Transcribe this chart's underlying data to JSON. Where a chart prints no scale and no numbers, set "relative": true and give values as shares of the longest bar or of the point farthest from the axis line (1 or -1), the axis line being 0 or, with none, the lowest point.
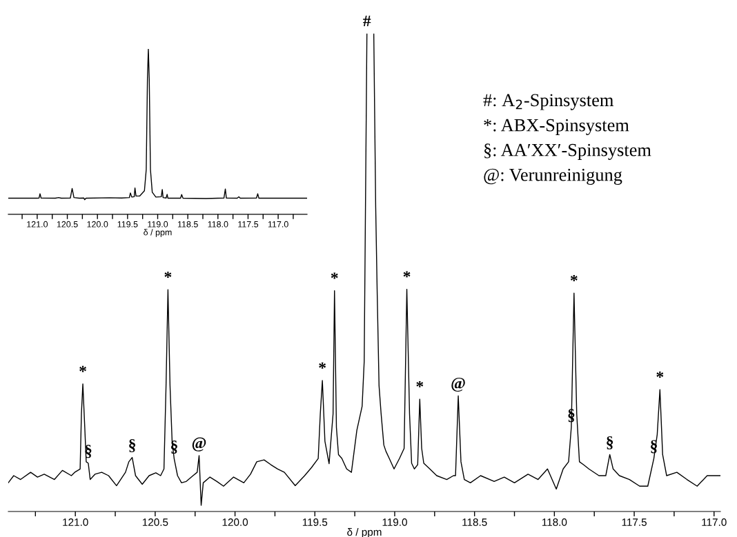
{
  "chart_data": [
    {
      "type": "line",
      "relative": true,
      "xlabel": "δ / ppm",
      "xlim": [
        121.42,
        116.96
      ],
      "xticks": [
        {
          "value": 121.25,
          "label": null
        },
        {
          "value": 121,
          "label": "121.0"
        },
        {
          "value": 120.75,
          "label": null
        },
        120.5,
        {
          "value": 120.25,
          "label": null
        },
        {
          "value": 120,
          "label": "120.0"
        },
        {
          "value": 119.75,
          "label": null
        },
        119.5,
        {
          "value": 119.25,
          "label": null
        },
        {
          "value": 119,
          "label": "119.0"
        },
        {
          "value": 118.75,
          "label": null
        },
        118.5,
        {
          "value": 118.25,
          "label": null
        },
        {
          "value": 118,
          "label": "118.0"
        },
        {
          "value": 117.75,
          "label": null
        },
        117.5,
        {
          "value": 117.25,
          "label": null
        },
        {
          "value": 117,
          "label": "117.0"
        }
      ],
      "grid": false,
      "legend": false,
      "marker": "none",
      "line_style": "solid",
      "series": [
        {
          "color": "#000000",
          "x": [
            121.42,
            121.386,
            121.343,
            121.28,
            121.237,
            121.195,
            121.131,
            121.081,
            121.025,
            121.004,
            120.97,
            120.962,
            120.953,
            120.941,
            120.932,
            120.919,
            120.907,
            120.877,
            120.835,
            120.792,
            120.742,
            120.686,
            120.665,
            120.644,
            120.623,
            120.581,
            120.538,
            120.496,
            120.466,
            120.445,
            120.432,
            120.42,
            120.407,
            120.394,
            120.381,
            120.36,
            120.335,
            120.305,
            120.263,
            120.237,
            120.225,
            120.212,
            120.199,
            120.157,
            120.114,
            120.072,
            120.009,
            119.945,
            119.903,
            119.864,
            119.818,
            119.776,
            119.733,
            119.691,
            119.623,
            119.564,
            119.521,
            119.479,
            119.466,
            119.453,
            119.437,
            119.411,
            119.386,
            119.377,
            119.365,
            119.352,
            119.331,
            119.301,
            119.271,
            119.237,
            119.204,
            119.191,
            119.174,
            119.153,
            119.131,
            119.119,
            119.11,
            119.098,
            119.085,
            119.068,
            119.055,
            119.034,
            119.004,
            118.97,
            118.941,
            118.924,
            118.907,
            118.894,
            118.877,
            118.856,
            118.843,
            118.831,
            118.818,
            118.78,
            118.737,
            118.674,
            118.632,
            118.619,
            118.602,
            118.585,
            118.564,
            118.526,
            118.462,
            118.377,
            118.314,
            118.25,
            118.165,
            118.102,
            118.043,
            117.988,
            117.945,
            117.911,
            117.894,
            117.877,
            117.86,
            117.843,
            117.818,
            117.784,
            117.721,
            117.678,
            117.653,
            117.632,
            117.593,
            117.53,
            117.466,
            117.415,
            117.377,
            117.356,
            117.339,
            117.322,
            117.297,
            117.233,
            117.17,
            117.106,
            117.043,
            116.96
          ],
          "values": [
            0.06,
            0.075,
            0.067,
            0.082,
            0.072,
            0.078,
            0.067,
            0.086,
            0.075,
            0.082,
            0.089,
            0.204,
            0.267,
            0.176,
            0.104,
            0.101,
            0.067,
            0.078,
            0.082,
            0.075,
            0.054,
            0.082,
            0.104,
            0.113,
            0.075,
            0.057,
            0.075,
            0.081,
            0.075,
            0.089,
            0.263,
            0.464,
            0.263,
            0.147,
            0.11,
            0.075,
            0.06,
            0.063,
            0.075,
            0.082,
            0.117,
            0.013,
            0.06,
            0.072,
            0.063,
            0.053,
            0.072,
            0.06,
            0.078,
            0.104,
            0.108,
            0.098,
            0.089,
            0.082,
            0.054,
            0.075,
            0.092,
            0.111,
            0.204,
            0.274,
            0.147,
            0.1,
            0.204,
            0.462,
            0.176,
            0.119,
            0.111,
            0.089,
            0.082,
            0.17,
            0.22,
            0.314,
            1,
            null,
            1,
            0.637,
            0.464,
            0.263,
            0.204,
            0.139,
            0.126,
            0.111,
            0.089,
            0.111,
            0.132,
            0.465,
            0.204,
            0.101,
            0.089,
            0.098,
            0.235,
            0.132,
            0.101,
            0.089,
            0.075,
            0.067,
            0.075,
            0.075,
            0.242,
            0.104,
            0.067,
            0.06,
            0.075,
            0.063,
            0.072,
            0.06,
            0.078,
            0.067,
            0.089,
            0.047,
            0.089,
            0.104,
            0.176,
            0.457,
            0.204,
            0.104,
            0.098,
            0.089,
            0.075,
            0.075,
            0.119,
            0.089,
            0.075,
            0.067,
            0.053,
            0.053,
            0.111,
            0.161,
            0.255,
            0.119,
            0.075,
            0.082,
            0.067,
            0.053,
            0.075,
            0.075
          ]
        }
      ],
      "annotations": [
        {
          "text": "*",
          "x": 120.953,
          "y": 0.267
        },
        {
          "text": "§",
          "x": 120.919,
          "y": 0.101
        },
        {
          "text": "§",
          "x": 120.644,
          "y": 0.113
        },
        {
          "text": "*",
          "x": 120.42,
          "y": 0.464
        },
        {
          "text": "§",
          "x": 120.381,
          "y": 0.11
        },
        {
          "text": "@",
          "x": 120.225,
          "y": 0.117
        },
        {
          "text": "*",
          "x": 119.453,
          "y": 0.274
        },
        {
          "text": "*",
          "x": 119.377,
          "y": 0.462
        },
        {
          "text": "#",
          "x": 119.174,
          "y": 1
        },
        {
          "text": "*",
          "x": 118.924,
          "y": 0.465
        },
        {
          "text": "*",
          "x": 118.843,
          "y": 0.235
        },
        {
          "text": "@",
          "x": 118.602,
          "y": 0.242
        },
        {
          "text": "§",
          "x": 117.894,
          "y": 0.176
        },
        {
          "text": "*",
          "x": 117.877,
          "y": 0.457
        },
        {
          "text": "§",
          "x": 117.653,
          "y": 0.119
        },
        {
          "text": "§",
          "x": 117.377,
          "y": 0.111
        },
        {
          "text": "*",
          "x": 117.339,
          "y": 0.255
        },
        "#: A$_{2}$-Spinsystem",
        "*: ABX-Spinsystem",
        "§: AA′XX′-Spinsystem",
        "@: Verunreinigung"
      ]
    },
    {
      "type": "line",
      "relative": true,
      "xlabel": "δ / ppm",
      "xlim": [
        121.48,
        116.52
      ],
      "xticks": [
        {
          "value": 121.25,
          "label": null
        },
        {
          "value": 121,
          "label": "121.0"
        },
        {
          "value": 120.75,
          "label": null
        },
        120.5,
        {
          "value": 120.25,
          "label": null
        },
        {
          "value": 120,
          "label": "120.0"
        },
        {
          "value": 119.75,
          "label": null
        },
        119.5,
        {
          "value": 119.25,
          "label": null
        },
        {
          "value": 119,
          "label": "119.0"
        },
        {
          "value": 118.75,
          "label": null
        },
        118.5,
        {
          "value": 118.25,
          "label": null
        },
        {
          "value": 118,
          "label": "118.0"
        },
        {
          "value": 117.75,
          "label": null
        },
        117.5,
        {
          "value": 117.25,
          "label": null
        },
        {
          "value": 117,
          "label": "117.0"
        },
        {
          "value": 116.75,
          "label": null
        }
      ],
      "grid": false,
      "legend": false,
      "marker": "none",
      "line_style": "solid",
      "series": [
        {
          "color": "#000000",
          "x": [
            121.48,
            121.0,
            120.97,
            120.953,
            120.935,
            120.7,
            120.644,
            120.6,
            120.45,
            120.42,
            120.39,
            120.3,
            120.225,
            120.212,
            120.19,
            119.8,
            119.6,
            119.47,
            119.453,
            119.43,
            119.39,
            119.377,
            119.36,
            119.3,
            119.22,
            119.19,
            119.17,
            119.155,
            119.14,
            119.12,
            119.09,
            119.03,
            118.94,
            118.924,
            118.91,
            118.86,
            118.843,
            118.83,
            118.62,
            118.602,
            118.58,
            118.2,
            117.9,
            117.877,
            117.86,
            117.68,
            117.653,
            117.63,
            117.36,
            117.339,
            117.32,
            116.52
          ],
          "values": [
            0.097,
            0.097,
            0.098,
            0.124,
            0.098,
            0.097,
            0.101,
            0.097,
            0.098,
            0.156,
            0.101,
            0.097,
            0.098,
            0.088,
            0.097,
            0.1,
            0.098,
            0.101,
            0.129,
            0.104,
            0.106,
            0.159,
            0.11,
            0.11,
            0.142,
            0.27,
            0.818,
            1,
            0.818,
            0.27,
            0.133,
            0.104,
            0.106,
            0.15,
            0.101,
            0.098,
            0.12,
            0.097,
            0.097,
            0.119,
            0.097,
            0.095,
            0.098,
            0.153,
            0.098,
            0.097,
            0.106,
            0.097,
            0.098,
            0.124,
            0.097,
            0.097
          ]
        }
      ]
    }
  ]
}
